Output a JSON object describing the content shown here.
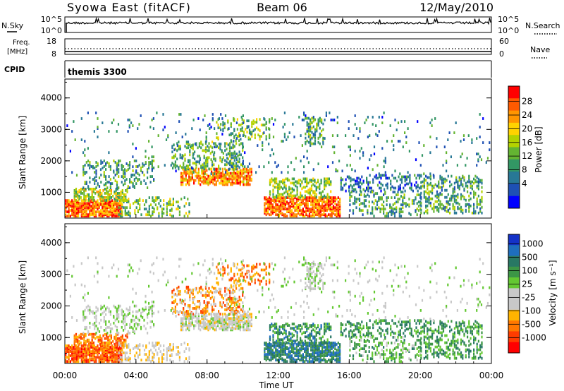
{
  "header": {
    "station": "Syowa East (fitACF)",
    "beam": "Beam 06",
    "date": "12/May/2010"
  },
  "nsky_panel": {
    "left_label": "N.Sky",
    "left_ticks": [
      "10^5",
      "10^0"
    ],
    "right_ticks": [
      "10^5",
      "10^0"
    ],
    "right_label": "N.Search"
  },
  "freq_panel": {
    "left_label_1": "Freq.",
    "left_label_2": "[MHz]",
    "left_ticks": [
      "18",
      "8"
    ],
    "right_ticks": [
      "60",
      "0"
    ],
    "right_label": "Nave"
  },
  "cpid_panel": {
    "label": "CPID",
    "mode": "themis 3300"
  },
  "time_axis": {
    "label": "Time UT",
    "ticks": [
      "00:00",
      "04:00",
      "08:00",
      "12:00",
      "16:00",
      "20:00",
      "00:00"
    ]
  },
  "power_colorbar": {
    "label": "Power [dB]",
    "labels": [
      "28",
      "24",
      "20",
      "16",
      "12",
      "8",
      "4"
    ],
    "colors": [
      "#ff0000",
      "#ff5a00",
      "#ff9600",
      "#ffd200",
      "#b4d200",
      "#64b432",
      "#329664",
      "#287896",
      "#1e50b4",
      "#0000ff"
    ]
  },
  "velocity_colorbar": {
    "label": "Velocity [m s⁻¹]",
    "labels": [
      "1000",
      "500",
      "100",
      "25",
      "-25",
      "-100",
      "-500",
      "-1000"
    ],
    "colors": [
      "#1432c8",
      "#1e6ebe",
      "#287864",
      "#3c9646",
      "#64c832",
      "#c8c8c8",
      "#c8c8c8",
      "#ffb400",
      "#ff7800",
      "#ff3c00",
      "#ff0000"
    ]
  },
  "chart_data": [
    {
      "type": "heatmap",
      "title": "Power",
      "xlabel": "Time UT",
      "ylabel": "Slant Range [km]",
      "y_ticks": [
        "1000",
        "2000",
        "3000",
        "4000"
      ],
      "xlim": [
        "00:00",
        "24:00"
      ],
      "ylim": [
        180,
        4600
      ],
      "colorbar_label": "Power [dB]",
      "colorbar_range": [
        0,
        30
      ]
    },
    {
      "type": "heatmap",
      "title": "Velocity",
      "xlabel": "Time UT",
      "ylabel": "Slant Range [km]",
      "y_ticks": [
        "1000",
        "2000",
        "3000",
        "4000"
      ],
      "xlim": [
        "00:00",
        "24:00"
      ],
      "ylim": [
        180,
        4600
      ],
      "colorbar_label": "Velocity [m s⁻¹]",
      "colorbar_range": [
        -1000,
        1000
      ]
    }
  ]
}
